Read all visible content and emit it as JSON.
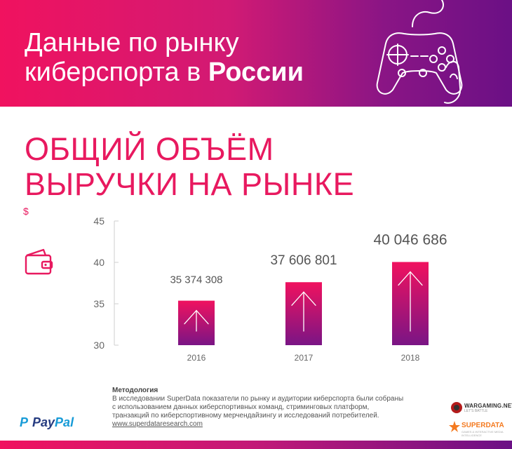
{
  "header": {
    "title_line1": "Данные по рынку",
    "title_line2_regular": "киберспорта в ",
    "title_line2_bold": "России"
  },
  "subtitle": {
    "line1": "ОБЩИЙ ОБЪЁМ",
    "line2": "ВЫРУЧКИ НА РЫНКЕ"
  },
  "unit": "$",
  "chart_data": {
    "type": "bar",
    "categories": [
      "2016",
      "2017",
      "2018"
    ],
    "values": [
      35.374308,
      37.606801,
      40.046686
    ],
    "data_labels": [
      "35 374 308",
      "37 606 801",
      "40 046 686"
    ],
    "yticks": [
      "30",
      "35",
      "40",
      "45"
    ],
    "ylim": [
      30,
      45
    ],
    "grid": false,
    "ylabel": "$"
  },
  "methodology": {
    "heading": "Методология",
    "lines": [
      "В исследовании SuperData показатели по рынку и аудитории киберспорта были собраны",
      "с использованием данных киберспортивных команд, стриминговых платформ,",
      "транзакций по киберспортивному мерчендайзингу и исследований потребителей."
    ],
    "url": "www.superdataresearch.com"
  },
  "logos": {
    "paypal_a": "Pay",
    "paypal_b": "Pal",
    "wargaming": "WARGAMING.NET",
    "wargaming_sub": "LET'S BATTLE",
    "superdata": "SUPERDATA",
    "superdata_sub": "GAMES & INTERACTIVE MEDIA INTELLIGENCE"
  },
  "colors": {
    "accent": "#e8195f",
    "bar_top": "#f0125f",
    "bar_bottom": "#7a1585",
    "header_left": "#f0125f",
    "header_right": "#6b1085"
  },
  "icons": {
    "header": "gamepad-icon",
    "side": "wallet-icon",
    "bar": "arrow-up-icon"
  }
}
